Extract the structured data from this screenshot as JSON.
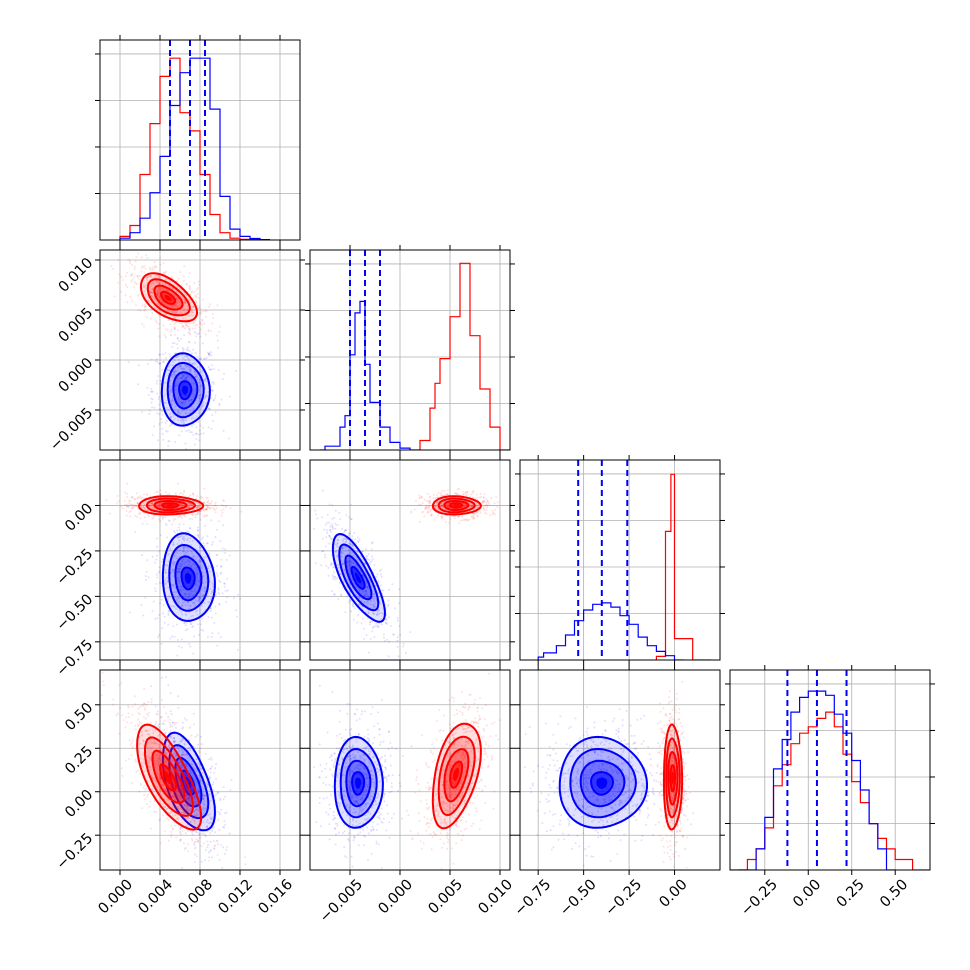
{
  "chart_data": {
    "type": "corner",
    "colors": {
      "blue": "#0000ff",
      "red": "#ff0000"
    },
    "grid": true,
    "series": [
      {
        "key": "blue",
        "color": "#0000ff"
      },
      {
        "key": "red",
        "color": "#ff0000"
      }
    ],
    "params": [
      {
        "range": [
          -0.002,
          0.018
        ],
        "ticks": [
          0.0,
          0.004,
          0.008,
          0.012,
          0.016
        ],
        "tick_labels": [
          "0.000",
          "0.004",
          "0.008",
          "0.012",
          "0.016"
        ],
        "hist_blue": [
          [
            0.0,
            0.0005
          ],
          [
            0.001,
            0.002
          ],
          [
            0.002,
            0.006
          ],
          [
            0.003,
            0.013
          ],
          [
            0.004,
            0.023
          ],
          [
            0.005,
            0.037
          ],
          [
            0.006,
            0.046
          ],
          [
            0.007,
            0.05
          ],
          [
            0.008,
            0.05
          ],
          [
            0.009,
            0.036
          ],
          [
            0.01,
            0.012
          ],
          [
            0.011,
            0.003
          ],
          [
            0.012,
            0.001
          ],
          [
            0.013,
            0.0004
          ],
          [
            0.014,
            0.0001
          ]
        ],
        "hist_red": [
          [
            0.0,
            0.001
          ],
          [
            0.001,
            0.004
          ],
          [
            0.002,
            0.018
          ],
          [
            0.003,
            0.032
          ],
          [
            0.004,
            0.045
          ],
          [
            0.005,
            0.05
          ],
          [
            0.006,
            0.035
          ],
          [
            0.007,
            0.03
          ],
          [
            0.008,
            0.018
          ],
          [
            0.009,
            0.007
          ],
          [
            0.01,
            0.002
          ],
          [
            0.011,
            0.0005
          ],
          [
            0.012,
            0.0002
          ],
          [
            0.013,
            0.0001
          ]
        ],
        "quantiles_blue": [
          0.005,
          0.007,
          0.0085
        ],
        "vmax": 0.055
      },
      {
        "range": [
          -0.009,
          0.011
        ],
        "ticks": [
          -0.005,
          0.0,
          0.005,
          0.01
        ],
        "tick_labels": [
          "−0.005",
          "0.000",
          "0.005",
          "0.010"
        ],
        "hist_blue": [
          [
            -0.008,
            0.0
          ],
          [
            -0.0075,
            0.002
          ],
          [
            -0.006,
            0.012
          ],
          [
            -0.0055,
            0.018
          ],
          [
            -0.005,
            0.05
          ],
          [
            -0.0045,
            0.072
          ],
          [
            -0.004,
            0.078
          ],
          [
            -0.0035,
            0.045
          ],
          [
            -0.003,
            0.025
          ],
          [
            -0.002,
            0.012
          ],
          [
            -0.001,
            0.004
          ],
          [
            0.0,
            0.001
          ],
          [
            0.001,
            0.0
          ]
        ],
        "hist_red": [
          [
            0.002,
            0.005
          ],
          [
            0.003,
            0.022
          ],
          [
            0.0035,
            0.035
          ],
          [
            0.004,
            0.048
          ],
          [
            0.005,
            0.07
          ],
          [
            0.006,
            0.098
          ],
          [
            0.007,
            0.06
          ],
          [
            0.008,
            0.032
          ],
          [
            0.009,
            0.012
          ],
          [
            0.01,
            0.0
          ]
        ],
        "quantiles_blue": [
          -0.005,
          -0.0035,
          -0.002
        ],
        "vmax": 0.105
      },
      {
        "range": [
          -0.85,
          0.25
        ],
        "ticks": [
          -0.75,
          -0.5,
          -0.25,
          0.0
        ],
        "tick_labels": [
          "−0.75",
          "−0.50",
          "−0.25",
          "0.00"
        ],
        "hist_blue": [
          [
            -0.75,
            0.004
          ],
          [
            -0.72,
            0.01
          ],
          [
            -0.65,
            0.02
          ],
          [
            -0.6,
            0.035
          ],
          [
            -0.55,
            0.055
          ],
          [
            -0.5,
            0.07
          ],
          [
            -0.45,
            0.078
          ],
          [
            -0.4,
            0.08
          ],
          [
            -0.35,
            0.074
          ],
          [
            -0.3,
            0.062
          ],
          [
            -0.25,
            0.05
          ],
          [
            -0.2,
            0.032
          ],
          [
            -0.15,
            0.02
          ],
          [
            -0.1,
            0.012
          ],
          [
            -0.05,
            0.006
          ],
          [
            0.0,
            0.0
          ]
        ],
        "hist_red": [
          [
            -0.1,
            0.005
          ],
          [
            -0.05,
            0.18
          ],
          [
            -0.02,
            0.26
          ],
          [
            0.0,
            0.03
          ],
          [
            0.1,
            0.0
          ]
        ],
        "quantiles_blue": [
          -0.53,
          -0.4,
          -0.26
        ],
        "vmax": 0.28
      },
      {
        "range": [
          -0.45,
          0.7
        ],
        "ticks": [
          -0.25,
          0.0,
          0.25,
          0.5
        ],
        "tick_labels": [
          "−0.25",
          "0.00",
          "0.25",
          "0.50"
        ],
        "hist_blue": [
          [
            -0.4,
            0.0
          ],
          [
            -0.3,
            0.01
          ],
          [
            -0.25,
            0.025
          ],
          [
            -0.2,
            0.048
          ],
          [
            -0.15,
            0.062
          ],
          [
            -0.1,
            0.075
          ],
          [
            -0.05,
            0.082
          ],
          [
            0.0,
            0.085
          ],
          [
            0.05,
            0.085
          ],
          [
            0.1,
            0.083
          ],
          [
            0.15,
            0.074
          ],
          [
            0.2,
            0.065
          ],
          [
            0.25,
            0.052
          ],
          [
            0.3,
            0.038
          ],
          [
            0.35,
            0.022
          ],
          [
            0.4,
            0.01
          ],
          [
            0.45,
            0.0
          ]
        ],
        "hist_red": [
          [
            -0.45,
            0.0
          ],
          [
            -0.35,
            0.005
          ],
          [
            -0.3,
            0.01
          ],
          [
            -0.25,
            0.02
          ],
          [
            -0.2,
            0.04
          ],
          [
            -0.15,
            0.05
          ],
          [
            -0.1,
            0.06
          ],
          [
            -0.05,
            0.065
          ],
          [
            0.0,
            0.068
          ],
          [
            0.05,
            0.072
          ],
          [
            0.1,
            0.075
          ],
          [
            0.15,
            0.068
          ],
          [
            0.2,
            0.055
          ],
          [
            0.25,
            0.042
          ],
          [
            0.3,
            0.032
          ],
          [
            0.35,
            0.022
          ],
          [
            0.4,
            0.015
          ],
          [
            0.45,
            0.01
          ],
          [
            0.5,
            0.005
          ],
          [
            0.6,
            0.0
          ]
        ],
        "quantiles_blue": [
          -0.12,
          0.05,
          0.22
        ],
        "vmax": 0.095
      }
    ],
    "pairs": [
      {
        "row": 1,
        "col": 0,
        "blue": {
          "center": [
            0.0065,
            -0.003
          ],
          "spread": [
            0.0012,
            0.0018
          ],
          "corr": 0.0
        },
        "red": {
          "center": [
            0.0048,
            0.0062
          ],
          "spread": [
            0.0014,
            0.0012
          ],
          "corr": -0.55
        }
      },
      {
        "row": 2,
        "col": 0,
        "blue": {
          "center": [
            0.0068,
            -0.4
          ],
          "spread": [
            0.0013,
            0.12
          ],
          "corr": -0.1
        },
        "red": {
          "center": [
            0.005,
            0.0
          ],
          "spread": [
            0.0016,
            0.025
          ],
          "corr": 0.0
        }
      },
      {
        "row": 2,
        "col": 1,
        "blue": {
          "center": [
            -0.0042,
            -0.4
          ],
          "spread": [
            0.0013,
            0.12
          ],
          "corr": -0.75
        },
        "red": {
          "center": [
            0.0056,
            0.0
          ],
          "spread": [
            0.0012,
            0.025
          ],
          "corr": 0.0
        }
      },
      {
        "row": 3,
        "col": 0,
        "blue": {
          "center": [
            0.0068,
            0.05
          ],
          "spread": [
            0.0013,
            0.14
          ],
          "corr": -0.55
        },
        "red": {
          "center": [
            0.0048,
            0.08
          ],
          "spread": [
            0.0016,
            0.15
          ],
          "corr": -0.7
        }
      },
      {
        "row": 3,
        "col": 1,
        "blue": {
          "center": [
            -0.0042,
            0.05
          ],
          "spread": [
            0.0012,
            0.13
          ],
          "corr": 0.0
        },
        "red": {
          "center": [
            0.0056,
            0.1
          ],
          "spread": [
            0.0012,
            0.15
          ],
          "corr": 0.45
        }
      },
      {
        "row": 3,
        "col": 2,
        "blue": {
          "center": [
            -0.4,
            0.05
          ],
          "spread": [
            0.12,
            0.13
          ],
          "corr": 0.0
        },
        "red": {
          "center": [
            -0.01,
            0.08
          ],
          "spread": [
            0.025,
            0.15
          ],
          "corr": 0.0
        }
      }
    ],
    "contour_levels": [
      0.5,
      1.0,
      1.5,
      2.0
    ]
  }
}
